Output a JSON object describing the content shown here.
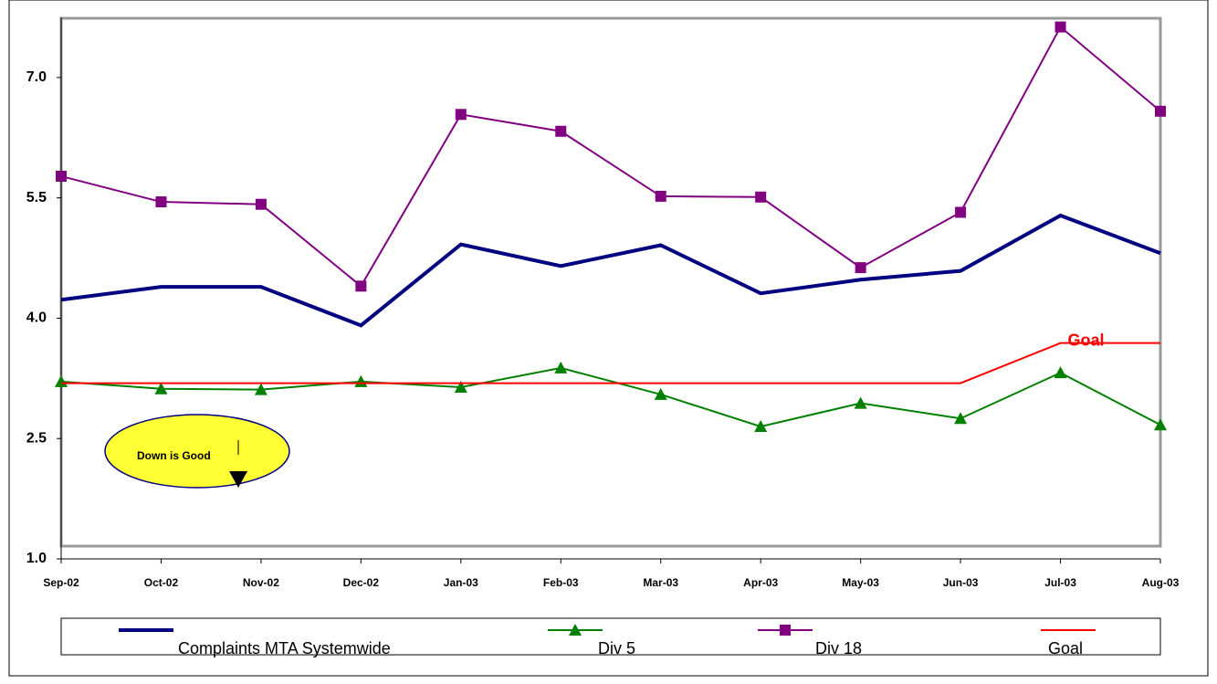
{
  "chart_data": {
    "type": "line",
    "categories": [
      "Sep-02",
      "Oct-02",
      "Nov-02",
      "Dec-02",
      "Jan-03",
      "Feb-03",
      "Mar-03",
      "Apr-03",
      "May-03",
      "Jun-03",
      "Jul-03",
      "Aug-03"
    ],
    "series": [
      {
        "name": "Complaints MTA Systemwide",
        "color": "#000080",
        "marker": "none",
        "width": 4,
        "values": [
          4.23,
          4.39,
          4.39,
          3.91,
          4.92,
          4.65,
          4.91,
          4.31,
          4.48,
          4.59,
          5.28,
          4.81
        ]
      },
      {
        "name": "Div 5",
        "color": "#008000",
        "marker": "triangle",
        "width": 2,
        "values": [
          3.21,
          3.12,
          3.11,
          3.21,
          3.14,
          3.38,
          3.05,
          2.65,
          2.94,
          2.75,
          3.32,
          2.67
        ]
      },
      {
        "name": "Div 18",
        "color": "#800080",
        "marker": "square",
        "width": 2,
        "values": [
          5.77,
          5.45,
          5.42,
          4.4,
          6.54,
          6.33,
          5.52,
          5.51,
          4.63,
          5.32,
          7.63,
          6.58
        ]
      },
      {
        "name": "Goal",
        "color": "#ff0000",
        "marker": "none",
        "width": 2,
        "values": [
          3.19,
          3.19,
          3.19,
          3.19,
          3.19,
          3.19,
          3.19,
          3.19,
          3.19,
          3.19,
          3.69,
          3.69
        ]
      }
    ],
    "ylim": [
      1.0,
      7.75
    ],
    "yticks": [
      {
        "value": 1.0,
        "label": "1.0"
      },
      {
        "value": 2.5,
        "label": "2.5"
      },
      {
        "value": 4.0,
        "label": "4.0"
      },
      {
        "value": 5.5,
        "label": "5.5"
      },
      {
        "value": 7.0,
        "label": "7.0"
      }
    ],
    "annotations": [
      "Down is Good",
      "Goal"
    ],
    "legend": "bottom"
  }
}
